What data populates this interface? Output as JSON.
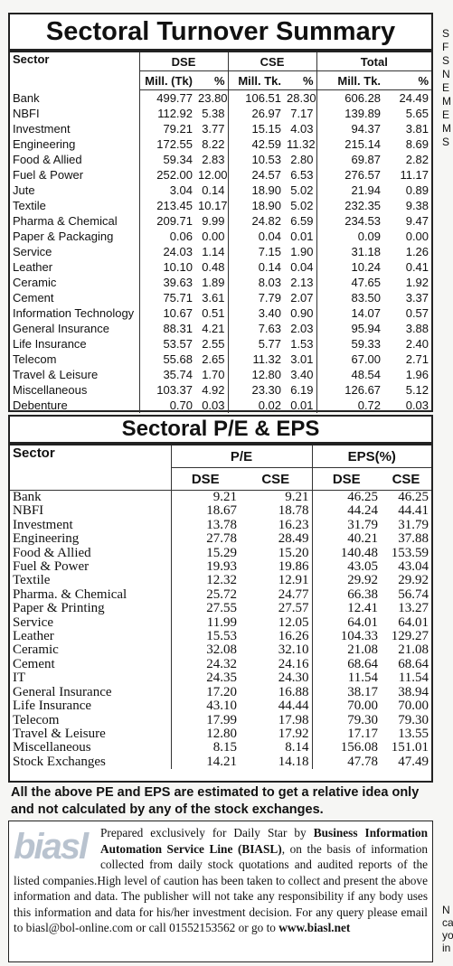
{
  "turnover": {
    "title": "Sectoral Turnover Summary",
    "header": {
      "sector": "Sector",
      "groups": [
        "DSE",
        "CSE",
        "Total"
      ],
      "sub": [
        "Mill. (Tk)",
        "%",
        "Mill. Tk.",
        "%",
        "Mill. Tk.",
        "%"
      ]
    },
    "rows": [
      [
        "Bank",
        "499.77",
        "23.80",
        "106.51",
        "28.30",
        "606.28",
        "24.49"
      ],
      [
        "NBFI",
        "112.92",
        "5.38",
        "26.97",
        "7.17",
        "139.89",
        "5.65"
      ],
      [
        "Investment",
        "79.21",
        "3.77",
        "15.15",
        "4.03",
        "94.37",
        "3.81"
      ],
      [
        "Engineering",
        "172.55",
        "8.22",
        "42.59",
        "11.32",
        "215.14",
        "8.69"
      ],
      [
        "Food & Allied",
        "59.34",
        "2.83",
        "10.53",
        "2.80",
        "69.87",
        "2.82"
      ],
      [
        "Fuel & Power",
        "252.00",
        "12.00",
        "24.57",
        "6.53",
        "276.57",
        "11.17"
      ],
      [
        "Jute",
        "3.04",
        "0.14",
        "18.90",
        "5.02",
        "21.94",
        "0.89"
      ],
      [
        "Textile",
        "213.45",
        "10.17",
        "18.90",
        "5.02",
        "232.35",
        "9.38"
      ],
      [
        "Pharma & Chemical",
        "209.71",
        "9.99",
        "24.82",
        "6.59",
        "234.53",
        "9.47"
      ],
      [
        "Paper & Packaging",
        "0.06",
        "0.00",
        "0.04",
        "0.01",
        "0.09",
        "0.00"
      ],
      [
        "Service",
        "24.03",
        "1.14",
        "7.15",
        "1.90",
        "31.18",
        "1.26"
      ],
      [
        "Leather",
        "10.10",
        "0.48",
        "0.14",
        "0.04",
        "10.24",
        "0.41"
      ],
      [
        "Ceramic",
        "39.63",
        "1.89",
        "8.03",
        "2.13",
        "47.65",
        "1.92"
      ],
      [
        "Cement",
        "75.71",
        "3.61",
        "7.79",
        "2.07",
        "83.50",
        "3.37"
      ],
      [
        "Information Technology",
        "10.67",
        "0.51",
        "3.40",
        "0.90",
        "14.07",
        "0.57"
      ],
      [
        "General Insurance",
        "88.31",
        "4.21",
        "7.63",
        "2.03",
        "95.94",
        "3.88"
      ],
      [
        "Life Insurance",
        "53.57",
        "2.55",
        "5.77",
        "1.53",
        "59.33",
        "2.40"
      ],
      [
        "Telecom",
        "55.68",
        "2.65",
        "11.32",
        "3.01",
        "67.00",
        "2.71"
      ],
      [
        "Travel & Leisure",
        "35.74",
        "1.70",
        "12.80",
        "3.40",
        "48.54",
        "1.96"
      ],
      [
        "Miscellaneous",
        "103.37",
        "4.92",
        "23.30",
        "6.19",
        "126.67",
        "5.12"
      ],
      [
        "Debenture",
        "0.70",
        "0.03",
        "0.02",
        "0.01",
        "0.72",
        "0.03"
      ]
    ]
  },
  "pe_eps": {
    "title": "Sectoral P/E & EPS",
    "header": {
      "sector": "Sector",
      "groups": [
        "P/E",
        "EPS(%)"
      ],
      "sub": [
        "DSE",
        "CSE",
        "DSE",
        "CSE"
      ]
    },
    "rows": [
      [
        "Bank",
        "9.21",
        "9.21",
        "46.25",
        "46.25"
      ],
      [
        "NBFI",
        "18.67",
        "18.78",
        "44.24",
        "44.41"
      ],
      [
        "Investment",
        "13.78",
        "16.23",
        "31.79",
        "31.79"
      ],
      [
        "Engineering",
        "27.78",
        "28.49",
        "40.21",
        "37.88"
      ],
      [
        "Food & Allied",
        "15.29",
        "15.20",
        "140.48",
        "153.59"
      ],
      [
        "Fuel & Power",
        "19.93",
        "19.86",
        "43.05",
        "43.04"
      ],
      [
        "Textile",
        "12.32",
        "12.91",
        "29.92",
        "29.92"
      ],
      [
        "Pharma. & Chemical",
        "25.72",
        "24.77",
        "66.38",
        "56.74"
      ],
      [
        "Paper & Printing",
        "27.55",
        "27.57",
        "12.41",
        "13.27"
      ],
      [
        "Service",
        "11.99",
        "12.05",
        "64.01",
        "64.01"
      ],
      [
        "Leather",
        "15.53",
        "16.26",
        "104.33",
        "129.27"
      ],
      [
        "Ceramic",
        "32.08",
        "32.10",
        "21.08",
        "21.08"
      ],
      [
        "Cement",
        "24.32",
        "24.16",
        "68.64",
        "68.64"
      ],
      [
        "IT",
        "24.35",
        "24.30",
        "11.54",
        "11.54"
      ],
      [
        "General Insurance",
        "17.20",
        "16.88",
        "38.17",
        "38.94"
      ],
      [
        "Life Insurance",
        "43.10",
        "44.44",
        "70.00",
        "70.00"
      ],
      [
        "Telecom",
        "17.99",
        "17.98",
        "79.30",
        "79.30"
      ],
      [
        "Travel & Leisure",
        "12.80",
        "17.92",
        "17.17",
        "13.55"
      ],
      [
        "Miscellaneous",
        "8.15",
        "8.14",
        "156.08",
        "151.01"
      ],
      [
        "Stock Exchanges",
        "14.21",
        "14.18",
        "47.78",
        "47.49"
      ]
    ]
  },
  "note": "All the above PE and EPS are estimated to get a relative idea only and not calculated by any of the stock exchanges.",
  "disclaimer": {
    "logo": "biasl",
    "segments": [
      "Prepared exclusively for Daily Star by ",
      "Business Information Automation Service Line (BIASL)",
      ", on the basis of information collected from daily stock quotations and audited reports of the listed companies.High level of caution has been taken to collect and present the above information and data. The publisher will not take any responsibility if any body uses this information and data for his/her investment decision. For any query please email to biasl@bol-online.com or call 01552153562 or go to ",
      "www.biasl.net"
    ]
  },
  "side_fragments": {
    "top": [
      "S",
      "F",
      "S",
      "N",
      "E",
      "M",
      "E",
      "M",
      "S"
    ],
    "bottom": [
      "N",
      "ca",
      "yo",
      "in"
    ]
  }
}
